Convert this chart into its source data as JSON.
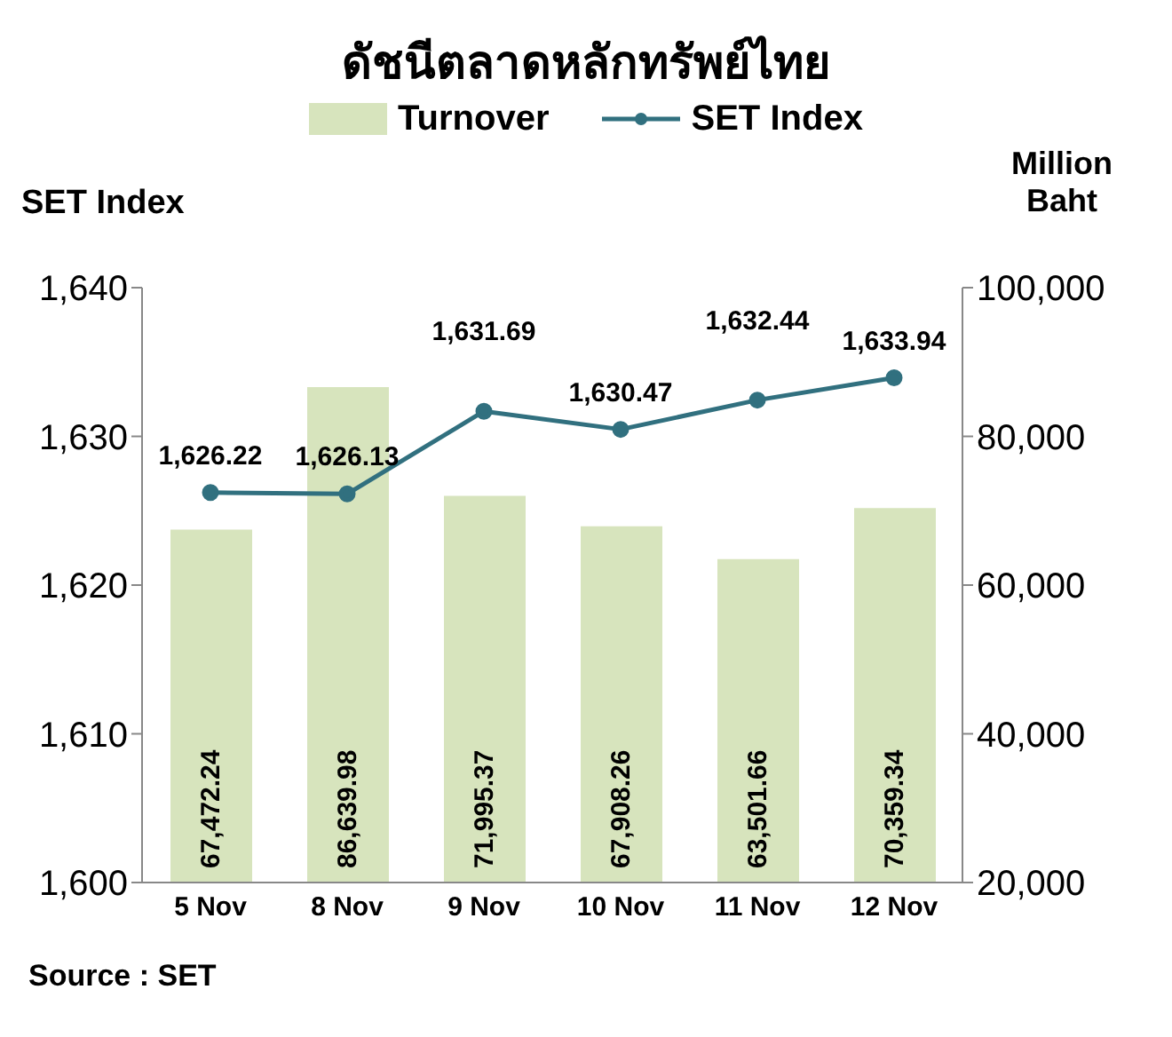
{
  "chart_data": {
    "type": "bar",
    "title": "ดัชนีตลาดหลักทรัพย์ไทย",
    "ylabel": "SET Index",
    "y2label": "Million Baht",
    "categories": [
      "5 Nov",
      "8 Nov",
      "9 Nov",
      "10 Nov",
      "11 Nov",
      "12 Nov"
    ],
    "series": [
      {
        "name": "Turnover",
        "axis": "y2",
        "color": "#d7e4bd",
        "values": [
          67472.24,
          86639.98,
          71995.37,
          67908.26,
          63501.66,
          70359.34
        ],
        "value_labels": [
          "67,472.24",
          "86,639.98",
          "71,995.37",
          "67,908.26",
          "63,501.66",
          "70,359.34"
        ]
      },
      {
        "name": "SET Index",
        "type": "line",
        "axis": "y",
        "color": "#31707f",
        "marker": "circle",
        "values": [
          1626.22,
          1626.13,
          1631.69,
          1630.47,
          1632.44,
          1633.94
        ],
        "value_labels": [
          "1,626.22",
          "1,626.13",
          "1,631.69",
          "1,630.47",
          "1,632.44",
          "1,633.94"
        ]
      }
    ],
    "ylim": [
      1600,
      1640
    ],
    "yticks": [
      {
        "value": 1600,
        "label": "1,600"
      },
      {
        "value": 1610,
        "label": "1,610"
      },
      {
        "value": 1620,
        "label": "1,620"
      },
      {
        "value": 1630,
        "label": "1,630"
      },
      {
        "value": 1640,
        "label": "1,640"
      }
    ],
    "y2lim": [
      20000,
      100000
    ],
    "y2ticks": [
      {
        "value": 20000,
        "label": "20,000"
      },
      {
        "value": 40000,
        "label": "40,000"
      },
      {
        "value": 60000,
        "label": "60,000"
      },
      {
        "value": 80000,
        "label": "80,000"
      },
      {
        "value": 100000,
        "label": "100,000"
      }
    ],
    "grid": false,
    "legend": "top",
    "annotations": [
      "Source : SET"
    ]
  }
}
